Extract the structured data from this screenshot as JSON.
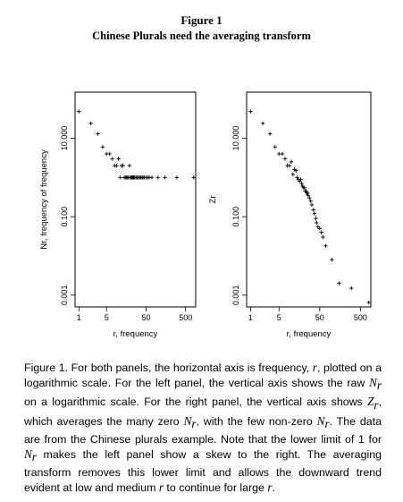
{
  "figure": {
    "title": "Figure 1",
    "subtitle": "Chinese Plurals need the averaging transform"
  },
  "caption": {
    "lead": "Figure 1. For both panels, the horizontal axis is frequency, ",
    "t1": ", plotted on a logarithmic scale. For the left panel, the vertical axis shows the raw ",
    "t2": " on a logarithmic scale. For the right panel, the vertical axis shows ",
    "t3": ", which averages the many zero ",
    "t4": ", with the few non-zero ",
    "t5": ". The data are from the Chinese plurals example. Note that the lower limit of 1 for ",
    "t6": " makes the left panel show a skew to the right. The averaging transform removes this lower limit and allows the downward trend evident at low and medium ",
    "t7": " to continue for large ",
    "t8": ".",
    "var_r": "r",
    "var_Nr": "N",
    "var_Zr": "Z",
    "sub_r": "r"
  },
  "chart_data": [
    {
      "type": "scatter",
      "marker": "+",
      "xscale": "log",
      "yscale": "log",
      "xlim": [
        0.8,
        900
      ],
      "ylim": [
        0.0005,
        150
      ],
      "xticks": [
        1,
        5,
        50,
        500
      ],
      "xtick_labels": [
        "1",
        "5",
        "50",
        "500"
      ],
      "yticks": [
        0.001,
        0.1,
        10
      ],
      "ytick_labels": [
        "0.001",
        "0.100",
        "10.000"
      ],
      "xlabel": "r, frequency",
      "ylabel": "Nr, frequency of frequency",
      "grid": false,
      "x": [
        1,
        2,
        3,
        4,
        5,
        6,
        7,
        8,
        9,
        10,
        11,
        12,
        13,
        14,
        15,
        16,
        17,
        18,
        19,
        20,
        21,
        22,
        23,
        24,
        25,
        26,
        28,
        30,
        32,
        35,
        37,
        40,
        42,
        45,
        50,
        55,
        60,
        70,
        100,
        150,
        300,
        800
      ],
      "y": [
        48,
        24,
        13,
        6,
        4,
        4,
        3,
        2,
        2,
        3,
        1,
        2,
        2,
        1,
        1,
        1,
        1,
        1,
        2,
        1,
        1,
        1,
        1,
        1,
        1,
        1,
        1,
        1,
        1,
        1,
        1,
        1,
        1,
        1,
        1,
        1,
        1,
        1,
        1,
        1,
        1,
        1
      ]
    },
    {
      "type": "scatter",
      "marker": "+",
      "xscale": "log",
      "yscale": "log",
      "xlim": [
        0.8,
        900
      ],
      "ylim": [
        0.0005,
        150
      ],
      "xticks": [
        1,
        5,
        50,
        500
      ],
      "xtick_labels": [
        "1",
        "5",
        "50",
        "500"
      ],
      "yticks": [
        0.001,
        0.1,
        10
      ],
      "ytick_labels": [
        "0.001",
        "0.100",
        "10.000"
      ],
      "xlabel": "r, frequency",
      "ylabel": "Zr",
      "grid": false,
      "x": [
        1,
        2,
        3,
        4,
        5,
        6,
        7,
        8,
        9,
        10,
        11,
        12,
        13,
        14,
        15,
        16,
        17,
        18,
        19,
        20,
        21,
        22,
        23,
        24,
        25,
        26,
        28,
        30,
        32,
        35,
        37,
        40,
        42,
        45,
        50,
        55,
        60,
        70,
        100,
        150,
        300,
        800
      ],
      "y": [
        48,
        24,
        13,
        6,
        4,
        4,
        3,
        2,
        2,
        2.5,
        1.2,
        1.6,
        1.5,
        1,
        0.9,
        0.8,
        0.9,
        0.7,
        0.6,
        0.55,
        0.55,
        0.45,
        0.45,
        0.4,
        0.4,
        0.35,
        0.3,
        0.25,
        0.2,
        0.15,
        0.12,
        0.09,
        0.07,
        0.055,
        0.05,
        0.04,
        0.03,
        0.018,
        0.008,
        0.002,
        0.0015,
        0.00065
      ]
    }
  ]
}
